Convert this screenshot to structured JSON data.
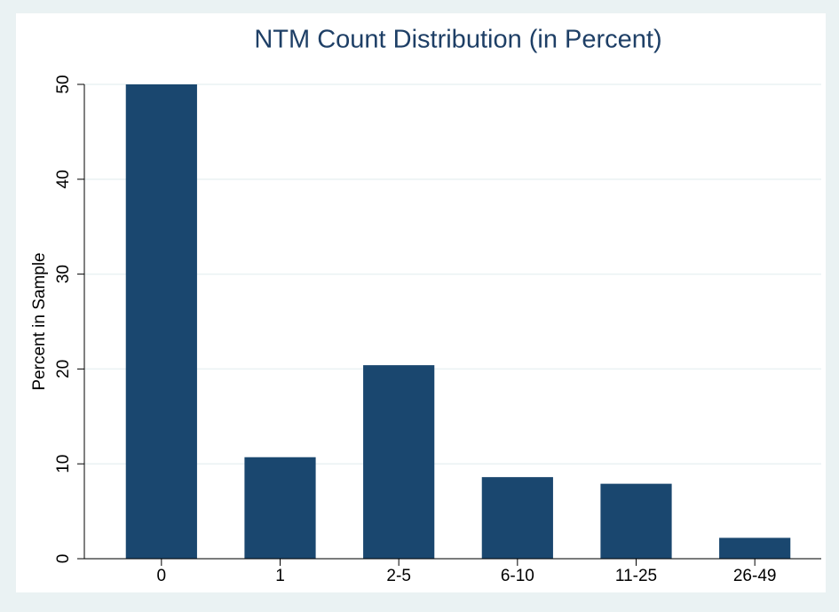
{
  "chart_data": {
    "type": "bar",
    "title": "NTM Count Distribution (in Percent)",
    "y_label": "Percent in Sample",
    "categories": [
      "0",
      "1",
      "2-5",
      "6-10",
      "11-25",
      "26-49"
    ],
    "values": [
      50.0,
      10.7,
      20.4,
      8.6,
      7.9,
      2.2
    ],
    "color": "#1a476f",
    "ylim": [
      0,
      50
    ],
    "yticks": [
      0,
      10,
      20,
      30,
      40,
      50
    ],
    "grid": true
  }
}
